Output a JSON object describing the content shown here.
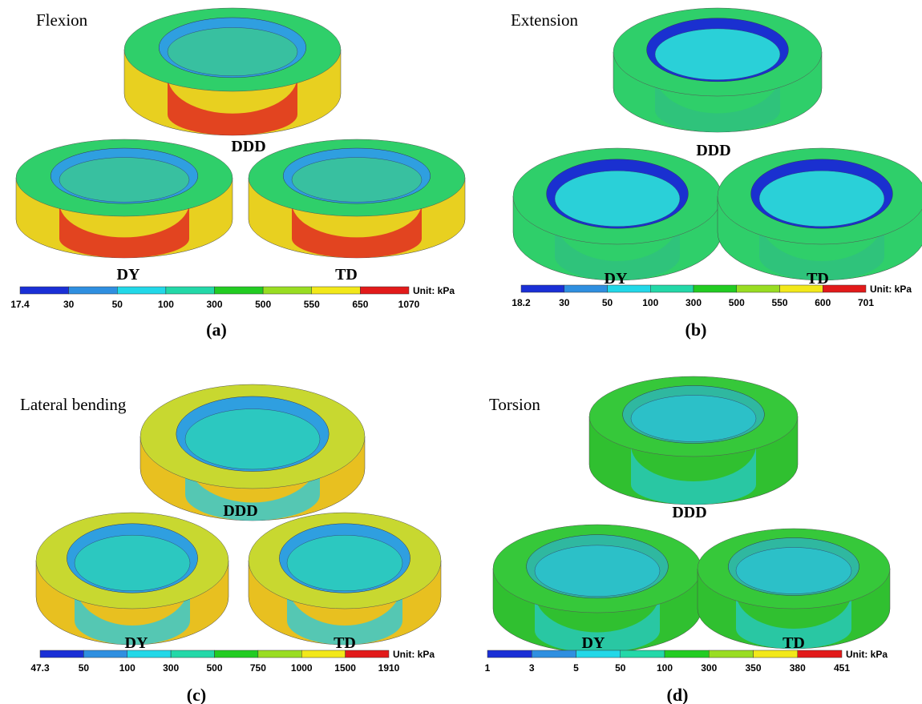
{
  "panels": [
    {
      "title": "Flexion",
      "labels": [
        "DDD",
        "DY",
        "TD"
      ],
      "scale": {
        "ticks": [
          "17.4",
          "30",
          "50",
          "100",
          "300",
          "500",
          "550",
          "650",
          "1070"
        ],
        "unit": "Unit: kPa"
      },
      "caption": "(a)"
    },
    {
      "title": "Extension",
      "labels": [
        "DDD",
        "DY",
        "TD"
      ],
      "scale": {
        "ticks": [
          "18.2",
          "30",
          "50",
          "100",
          "300",
          "500",
          "550",
          "600",
          "701"
        ],
        "unit": "Unit: kPa"
      },
      "caption": "(b)"
    },
    {
      "title": "Lateral bending",
      "labels": [
        "DDD",
        "DY",
        "TD"
      ],
      "scale": {
        "ticks": [
          "47.3",
          "50",
          "100",
          "300",
          "500",
          "750",
          "1000",
          "1500",
          "1910"
        ],
        "unit": "Unit: kPa"
      },
      "caption": "(c)"
    },
    {
      "title": "Torsion",
      "labels": [
        "DDD",
        "DY",
        "TD"
      ],
      "scale": {
        "ticks": [
          "1",
          "3",
          "5",
          "50",
          "100",
          "300",
          "350",
          "380",
          "451"
        ],
        "unit": "Unit: kPa"
      },
      "caption": "(d)"
    }
  ]
}
